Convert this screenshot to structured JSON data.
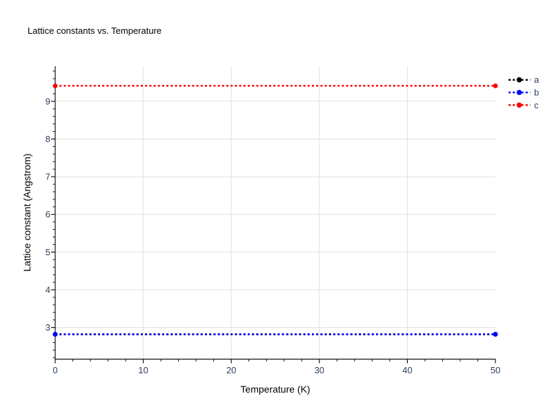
{
  "chart_data": {
    "type": "line",
    "title": "Lattice constants vs. Temperature",
    "xlabel": "Temperature (K)",
    "ylabel": "Lattice constant (Angstrom)",
    "xlim": [
      0,
      50
    ],
    "ylim": [
      2.16,
      9.93
    ],
    "x": [
      0,
      50
    ],
    "series": [
      {
        "name": "a",
        "color": "#000000",
        "values": [
          2.82,
          2.82
        ],
        "line_style": "dot",
        "marker": "circle"
      },
      {
        "name": "b",
        "color": "#0000ff",
        "values": [
          2.82,
          2.82
        ],
        "line_style": "dot",
        "marker": "circle"
      },
      {
        "name": "c",
        "color": "#ff0000",
        "values": [
          9.41,
          9.41
        ],
        "line_style": "dot",
        "marker": "circle"
      }
    ],
    "x_major_ticks": [
      0,
      10,
      20,
      30,
      40,
      50
    ],
    "x_minor_step": 2,
    "y_major_ticks": [
      3,
      4,
      5,
      6,
      7,
      8,
      9
    ],
    "y_minor_step": 0.2,
    "x_gridlines": [
      10,
      20,
      30,
      40
    ],
    "y_gridlines": [
      3,
      4,
      5,
      6,
      7,
      8,
      9
    ],
    "grid": true,
    "legend": {
      "position": "top-right",
      "entries": [
        "a",
        "b",
        "c"
      ]
    },
    "colors": {
      "text": "#2a3f5f",
      "axis": "#111111",
      "grid": "#e1e1e1",
      "background": "#ffffff"
    }
  }
}
